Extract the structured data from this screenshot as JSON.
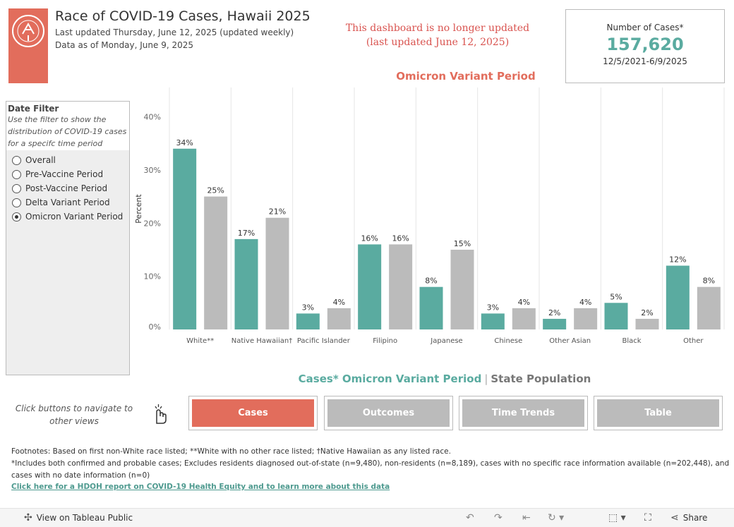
{
  "header": {
    "title": "Race of COVID-19 Cases, Hawaii 2025",
    "updated": "Last updated Thursday, June 12, 2025 (updated weekly)",
    "data_as_of": "Data as of Monday, June 9, 2025"
  },
  "notice": {
    "line1": "This dashboard is no longer updated",
    "line2": "(last updated June 12, 2025)"
  },
  "kpi": {
    "label": "Number of Cases*",
    "value": "157,620",
    "range": "12/5/2021-6/9/2025"
  },
  "period_title": "Omicron Variant Period",
  "filter": {
    "title": "Date Filter",
    "help_lines": [
      "Use the filter to show the",
      "distribution of COVID-19 cases",
      "for a specifc time period"
    ],
    "options": [
      {
        "label": "Overall",
        "selected": false
      },
      {
        "label": "Pre-Vaccine Period",
        "selected": false
      },
      {
        "label": "Post-Vaccine Period",
        "selected": false
      },
      {
        "label": "Delta Variant Period",
        "selected": false
      },
      {
        "label": "Omicron Variant Period",
        "selected": true
      }
    ]
  },
  "legend": {
    "cases_label": "Cases* Omicron Variant Period",
    "separator": "|",
    "pop_label": "State Population"
  },
  "nav": {
    "hint_line1": "Click buttons to navigate to",
    "hint_line2": "other views",
    "buttons": [
      {
        "label": "Cases",
        "active": true
      },
      {
        "label": "Outcomes",
        "active": false
      },
      {
        "label": "Time Trends",
        "active": false
      },
      {
        "label": "Table",
        "active": false
      }
    ]
  },
  "footnotes": {
    "line1": "Footnotes: Based on first non-White race listed; **White with no other race listed; †Native Hawaiian as any listed race.",
    "line2": "*Includes both confirmed and probable cases; Excludes residents diagnosed out-of-state (n=9,480), non-residents (n=8,189), cases with no specific race information available (n=202,448), and",
    "line3": "cases with no date information (n=0)",
    "link": "Click here for a HDOH report on COVID-19 Health Equity and to learn more about this data"
  },
  "toolbar": {
    "view_label": "View on Tableau Public",
    "share_label": "Share"
  },
  "colors": {
    "accent": "#e26d5c",
    "teal": "#5aaba0",
    "gray": "#bbbbbb",
    "notice": "#d9534f",
    "grid": "#e6e6e6"
  },
  "chart_data": {
    "type": "bar",
    "ylabel": "Percent",
    "ylim": [
      0,
      45
    ],
    "yticks": [
      0,
      10,
      20,
      30,
      40
    ],
    "ytick_labels": [
      "0%",
      "10%",
      "20%",
      "30%",
      "40%"
    ],
    "grid": "vertical separators",
    "categories": [
      "White**",
      "Native Hawaiian†",
      "Pacific Islander",
      "Filipino",
      "Japanese",
      "Chinese",
      "Other Asian",
      "Black",
      "Other"
    ],
    "series": [
      {
        "name": "Cases* Omicron Variant Period",
        "values": [
          34,
          17,
          3,
          16,
          8,
          3,
          2,
          5,
          12
        ],
        "labels": [
          "34%",
          "17%",
          "3%",
          "16%",
          "8%",
          "3%",
          "2%",
          "5%",
          "12%"
        ]
      },
      {
        "name": "State Population",
        "values": [
          25,
          21,
          4,
          16,
          15,
          4,
          4,
          2,
          8
        ],
        "labels": [
          "25%",
          "21%",
          "4%",
          "16%",
          "15%",
          "4%",
          "4%",
          "2%",
          "8%"
        ]
      }
    ]
  }
}
